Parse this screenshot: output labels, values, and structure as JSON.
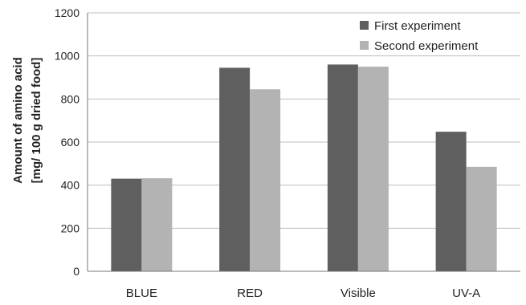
{
  "chart_data": {
    "type": "bar",
    "categories": [
      "BLUE",
      "RED",
      "Visible",
      "UV-A"
    ],
    "series": [
      {
        "name": "First experiment",
        "values": [
          430,
          945,
          960,
          648
        ],
        "color": "#5f5f5f"
      },
      {
        "name": "Second experiment",
        "values": [
          432,
          845,
          950,
          485
        ],
        "color": "#b3b3b3"
      }
    ],
    "ylabel_line1": "Amount of amino acid",
    "ylabel_line2": "[mg/ 100 g dried food]",
    "ylim": [
      0,
      1200
    ],
    "yticks": [
      "0",
      "200",
      "400",
      "600",
      "800",
      "1000",
      "1200"
    ],
    "grid": true,
    "legend_position": "top-right",
    "gridline_color": "#bdbdbd"
  }
}
